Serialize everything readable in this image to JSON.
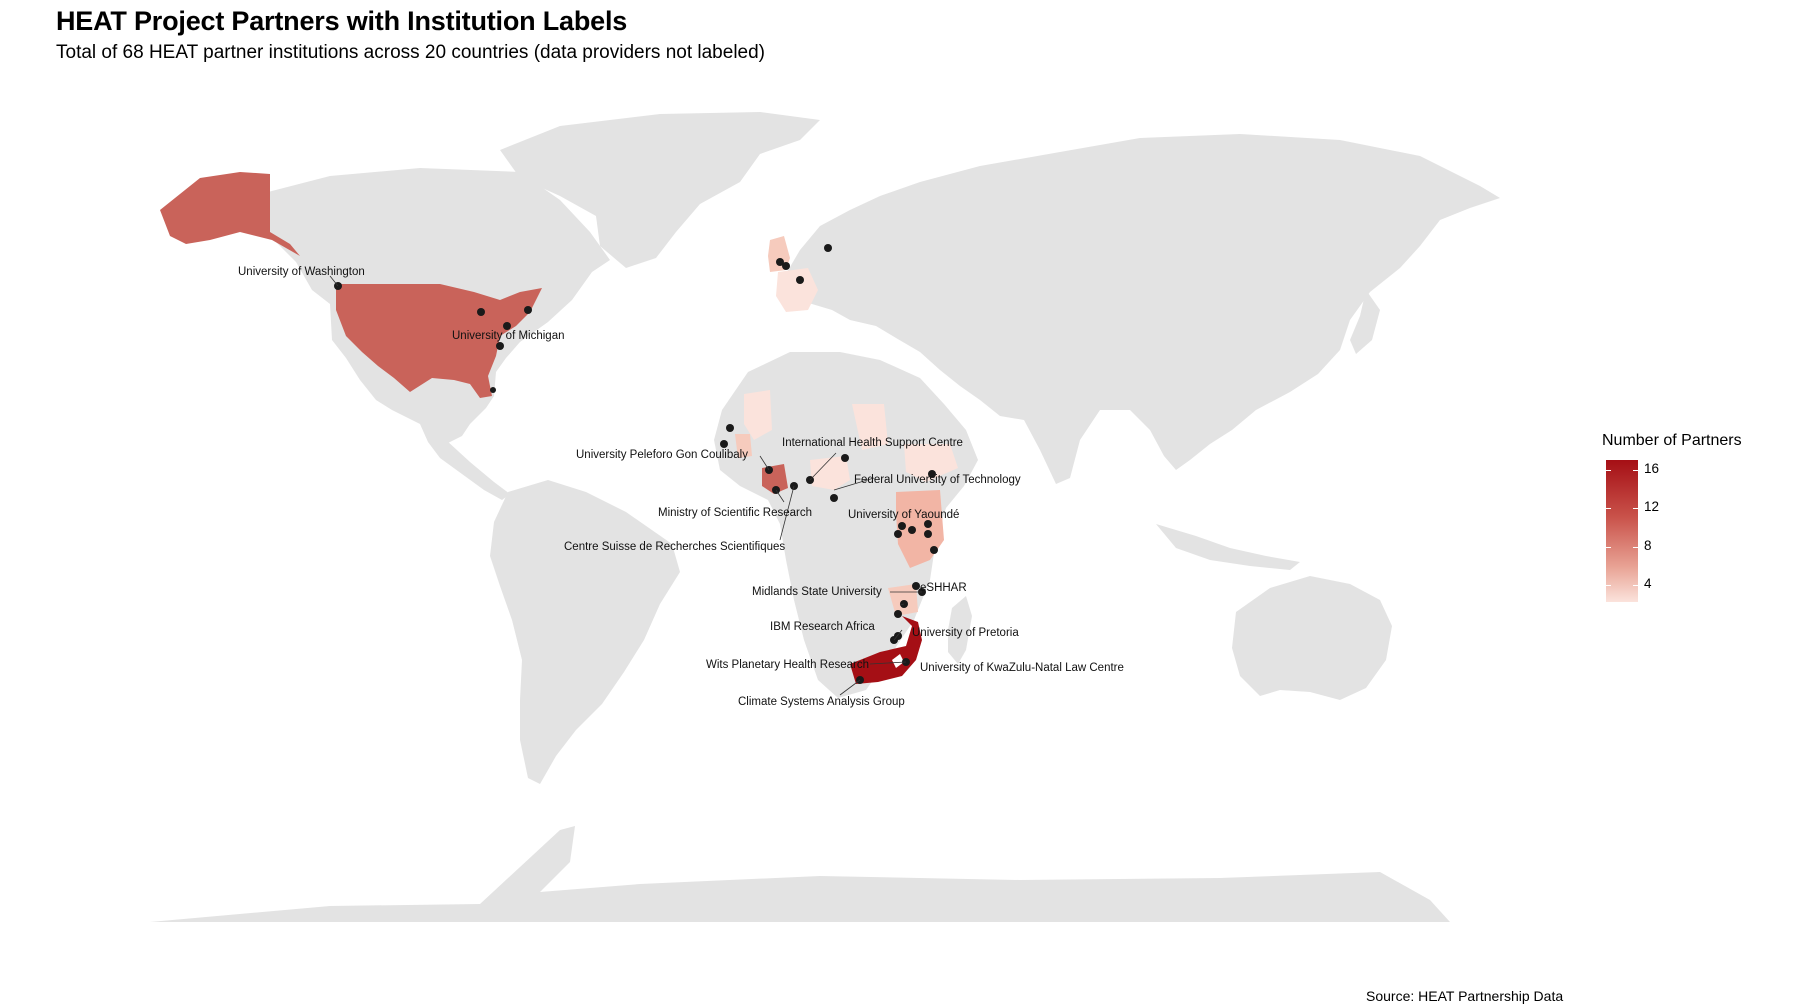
{
  "title": "HEAT Project Partners with Institution Labels",
  "subtitle": "Total of 68 HEAT partner institutions across 20 countries (data providers not labeled)",
  "source": "Source: HEAT Partnership Data",
  "colors": {
    "land": "#e3e3e3",
    "border": "#ffffff",
    "low": "#fbe3dc",
    "high": "#a50f15",
    "point": "#1a1a1a"
  },
  "legend": {
    "title": "Number of Partners",
    "ticks": [
      "16",
      "12",
      "8",
      "4"
    ]
  },
  "institutions": [
    {
      "name": "University of Washington"
    },
    {
      "name": "University of Michigan"
    },
    {
      "name": "University Peleforo Gon Coulibaly"
    },
    {
      "name": "International Health Support Centre"
    },
    {
      "name": "Federal University of Technology"
    },
    {
      "name": "Ministry of Scientific Research"
    },
    {
      "name": "University of Yaoundé"
    },
    {
      "name": "Centre Suisse de Recherches Scientifiques"
    },
    {
      "name": "Midlands State University"
    },
    {
      "name": "eSHHAR"
    },
    {
      "name": "IBM Research Africa"
    },
    {
      "name": "University of Pretoria"
    },
    {
      "name": "Wits Planetary Health Research"
    },
    {
      "name": "University of KwaZulu-Natal Law Centre"
    },
    {
      "name": "Climate Systems Analysis Group"
    }
  ]
}
